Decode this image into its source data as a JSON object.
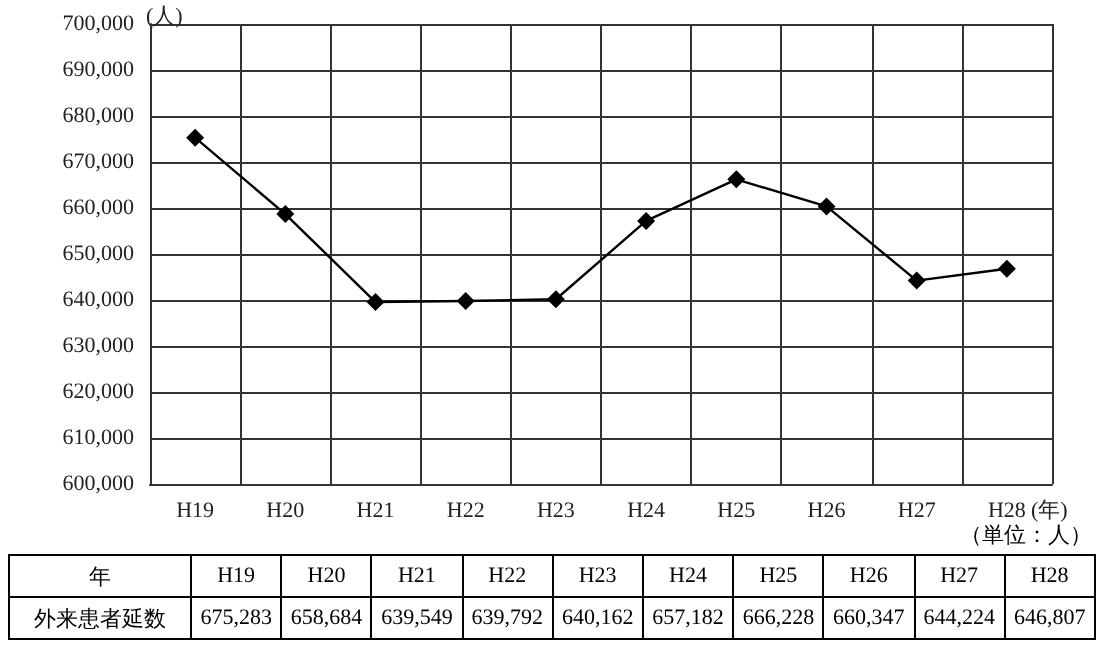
{
  "chart_data": {
    "type": "line",
    "categories": [
      "H19",
      "H20",
      "H21",
      "H22",
      "H23",
      "H24",
      "H25",
      "H26",
      "H27",
      "H28"
    ],
    "series": [
      {
        "name": "外来患者延数",
        "color": "#000000",
        "values": [
          675283,
          658684,
          639549,
          639792,
          640162,
          657182,
          666228,
          660347,
          644224,
          646807
        ],
        "value_labels": [
          "675,283",
          "658,684",
          "639,549",
          "639,792",
          "640,162",
          "657,182",
          "666,228",
          "660,347",
          "644,224",
          "646,807"
        ]
      }
    ],
    "xlabel": "(年)",
    "ylabel": "(人)",
    "ylim": [
      600000,
      700000
    ],
    "yticks": [
      {
        "value": 600000,
        "label": "600,000"
      },
      {
        "value": 610000,
        "label": "610,000"
      },
      {
        "value": 620000,
        "label": "620,000"
      },
      {
        "value": 630000,
        "label": "630,000"
      },
      {
        "value": 640000,
        "label": "640,000"
      },
      {
        "value": 650000,
        "label": "650,000"
      },
      {
        "value": 660000,
        "label": "660,000"
      },
      {
        "value": 670000,
        "label": "670,000"
      },
      {
        "value": 680000,
        "label": "680,000"
      },
      {
        "value": 690000,
        "label": "690,000"
      },
      {
        "value": 700000,
        "label": "700,000"
      }
    ],
    "grid": true,
    "marker": "diamond",
    "line_style": "solid",
    "legend": "bottom",
    "annotations": [
      "（単位：人）",
      "年"
    ]
  }
}
